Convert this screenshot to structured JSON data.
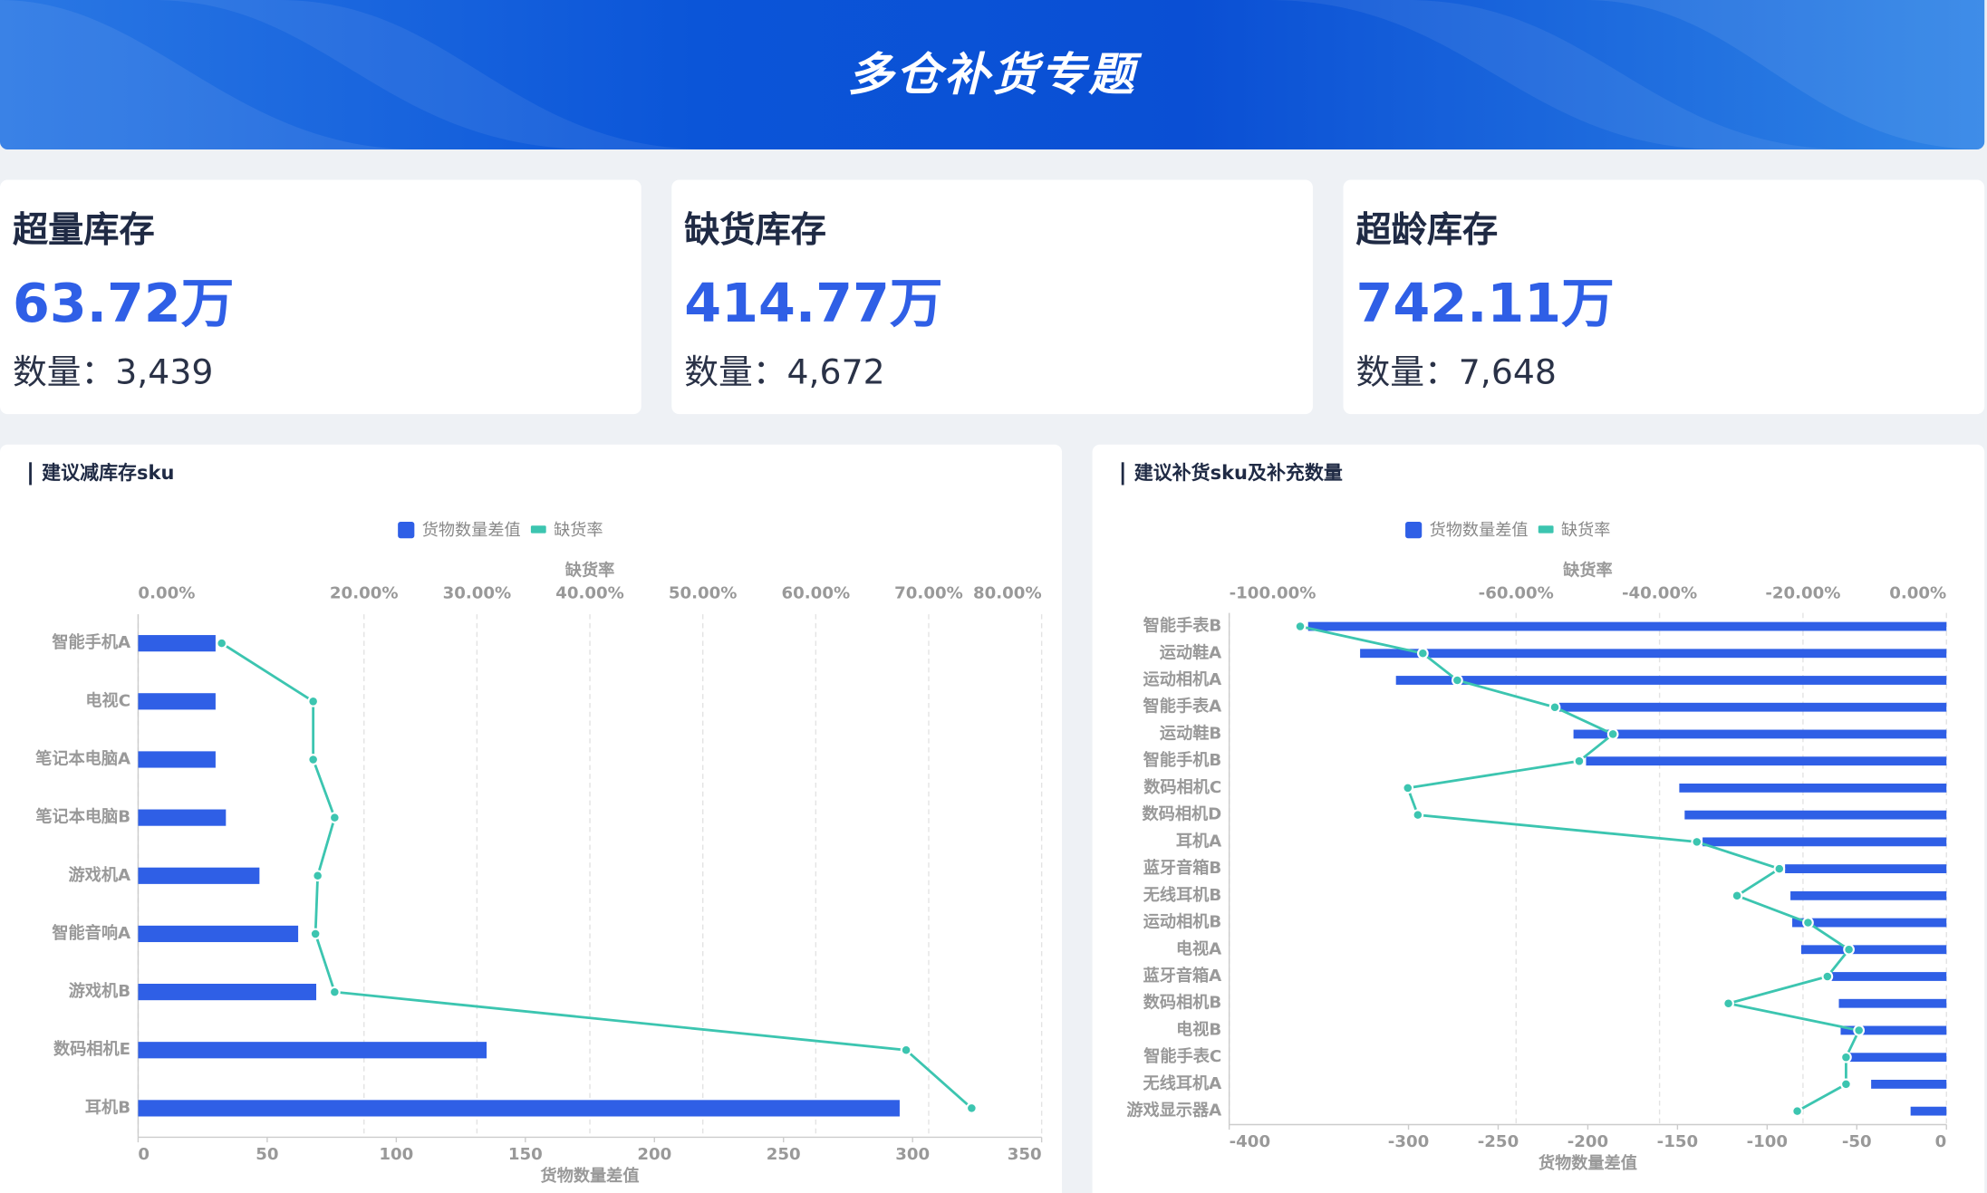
{
  "header": {
    "title": "多仓补货专题"
  },
  "cards": [
    {
      "title": "超量库存",
      "value": "63.72万",
      "count": "数量：3,439"
    },
    {
      "title": "缺货库存",
      "value": "414.77万",
      "count": "数量：4,672"
    },
    {
      "title": "超龄库存",
      "value": "742.11万",
      "count": "数量：7,648"
    }
  ],
  "chart_data": [
    {
      "type": "bar",
      "title": "建议减库存sku",
      "categories": [
        "智能手机A",
        "电视C",
        "笔记本电脑A",
        "笔记本电脑B",
        "游戏机A",
        "智能音响A",
        "游戏机B",
        "数码相机E",
        "耳机B"
      ],
      "series": [
        {
          "name": "货物数量差值",
          "color": "#2f5fe6",
          "values": [
            30,
            30,
            30,
            34,
            47,
            62,
            69,
            135,
            295
          ]
        },
        {
          "name": "缺货率",
          "color": "#3cc5b0",
          "axis": "x2",
          "values": [
            7.4,
            15.5,
            15.5,
            17.4,
            15.9,
            15.7,
            17.4,
            68.0,
            73.8
          ]
        }
      ],
      "xlabel": "货物数量差值",
      "x2label": "缺货率",
      "xlim": [
        0,
        350
      ],
      "xticks": [
        0,
        50,
        100,
        150,
        200,
        250,
        300,
        350
      ],
      "x2lim": [
        0,
        80
      ],
      "x2ticks": [
        {
          "value": 0,
          "label": "0.00%"
        },
        {
          "value": 20,
          "label": "20.00%"
        },
        {
          "value": 30,
          "label": "30.00%"
        },
        {
          "value": 40,
          "label": "40.00%"
        },
        {
          "value": 50,
          "label": "50.00%"
        },
        {
          "value": 60,
          "label": "60.00%"
        },
        {
          "value": 70,
          "label": "70.00%"
        },
        {
          "value": 80,
          "label": "80.00%"
        }
      ],
      "grid": true,
      "legend": "top"
    },
    {
      "type": "bar",
      "title": "建议补货sku及补充数量",
      "categories": [
        "智能手表B",
        "运动鞋A",
        "运动相机A",
        "智能手表A",
        "运动鞋B",
        "智能手机B",
        "数码相机C",
        "数码相机D",
        "耳机A",
        "蓝牙音箱B",
        "无线耳机B",
        "运动相机B",
        "电视A",
        "蓝牙音箱A",
        "数码相机B",
        "电视B",
        "智能手表C",
        "无线耳机A",
        "游戏显示器A"
      ],
      "series": [
        {
          "name": "货物数量差值",
          "color": "#2f5fe6",
          "values": [
            -356,
            -327,
            -307,
            -216,
            -208,
            -201,
            -149,
            -146,
            -136,
            -90,
            -87,
            -86,
            -81,
            -64,
            -60,
            -59,
            -56,
            -42,
            -20
          ]
        },
        {
          "name": "缺货率",
          "color": "#3cc5b0",
          "axis": "x2",
          "values": [
            -90.1,
            -73.0,
            -68.2,
            -54.6,
            -46.5,
            -51.2,
            -75.1,
            -73.7,
            -34.8,
            -23.3,
            -29.2,
            -19.3,
            -13.6,
            -16.6,
            -30.4,
            -12.2,
            -14.0,
            -14.0,
            -20.8
          ]
        }
      ],
      "xlabel": "货物数量差值",
      "x2label": "缺货率",
      "xlim": [
        -400,
        0
      ],
      "xticks": [
        -400,
        -300,
        -250,
        -200,
        -150,
        -100,
        -50,
        0
      ],
      "x2lim": [
        -100,
        0
      ],
      "x2ticks": [
        {
          "value": -100,
          "label": "-100.00%"
        },
        {
          "value": -60,
          "label": "-60.00%"
        },
        {
          "value": -40,
          "label": "-40.00%"
        },
        {
          "value": -20,
          "label": "-20.00%"
        },
        {
          "value": 0,
          "label": "0.00%"
        }
      ],
      "grid": true,
      "legend": "top"
    }
  ]
}
